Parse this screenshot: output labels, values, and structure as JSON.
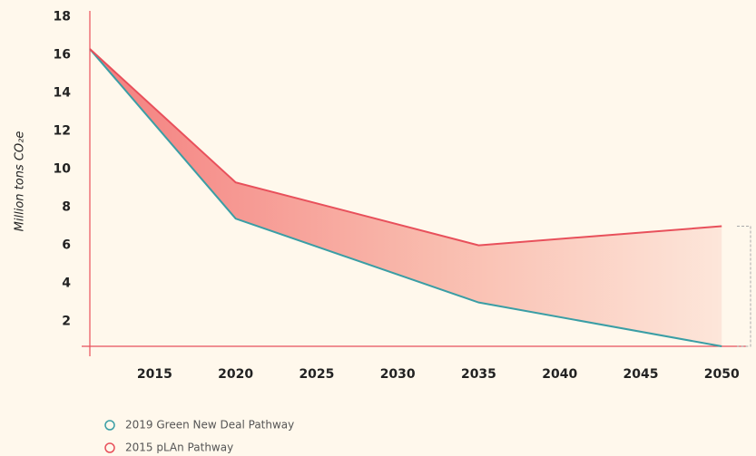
{
  "chart_data": {
    "type": "line",
    "y_label": "Million tons CO₂e",
    "x": [
      2011,
      2020,
      2035,
      2050
    ],
    "series": [
      {
        "name": "2019 Green New Deal Pathway",
        "color": "#3a9ea5",
        "values": [
          16.3,
          7.4,
          3.0,
          0.7
        ]
      },
      {
        "name": "2015 pLAn Pathway",
        "color": "#e8505b",
        "values": [
          16.3,
          9.3,
          6.0,
          7.0
        ]
      }
    ],
    "xlim": [
      2011,
      2051.5
    ],
    "xticks": [
      2015,
      2020,
      2025,
      2030,
      2035,
      2040,
      2045,
      2050
    ],
    "ylim": [
      0.7,
      18.3
    ],
    "yticks": [
      2,
      4,
      6,
      8,
      10,
      12,
      14,
      16,
      18
    ],
    "fill_between": true
  }
}
